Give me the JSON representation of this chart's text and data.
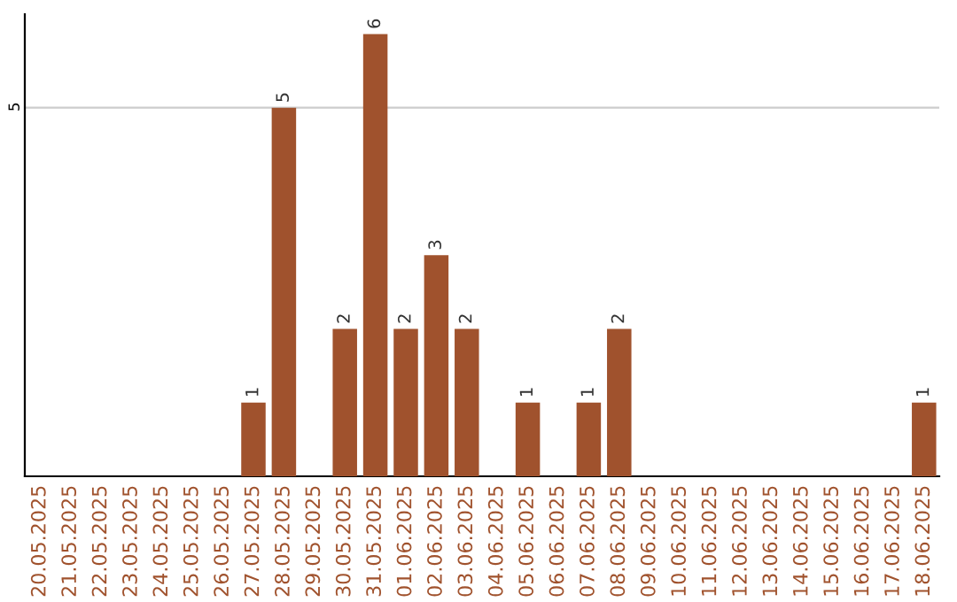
{
  "chart_data": {
    "type": "bar",
    "categories": [
      "20.05.2025",
      "21.05.2025",
      "22.05.2025",
      "23.05.2025",
      "24.05.2025",
      "25.05.2025",
      "26.05.2025",
      "27.05.2025",
      "28.05.2025",
      "29.05.2025",
      "30.05.2025",
      "31.05.2025",
      "01.06.2025",
      "02.06.2025",
      "03.06.2025",
      "04.06.2025",
      "05.06.2025",
      "06.06.2025",
      "07.06.2025",
      "08.06.2025",
      "09.06.2025",
      "10.06.2025",
      "11.06.2025",
      "12.06.2025",
      "13.06.2025",
      "14.06.2025",
      "15.06.2025",
      "16.06.2025",
      "17.06.2025",
      "18.06.2025"
    ],
    "values": [
      0,
      0,
      0,
      0,
      0,
      0,
      0,
      1,
      5,
      0,
      2,
      6,
      2,
      3,
      2,
      0,
      1,
      0,
      1,
      2,
      0,
      0,
      0,
      0,
      0,
      0,
      0,
      0,
      0,
      1
    ],
    "value_labels": [
      null,
      null,
      null,
      null,
      null,
      null,
      null,
      "1",
      "5",
      null,
      "2",
      "6",
      "2",
      "3",
      "2",
      null,
      "1",
      null,
      "1",
      "2",
      null,
      null,
      null,
      null,
      null,
      null,
      null,
      null,
      null,
      "1"
    ],
    "color": "#a0522d",
    "ylim": [
      0,
      6.27
    ],
    "yticks": [
      5
    ],
    "grid": "y",
    "legend": false
  }
}
